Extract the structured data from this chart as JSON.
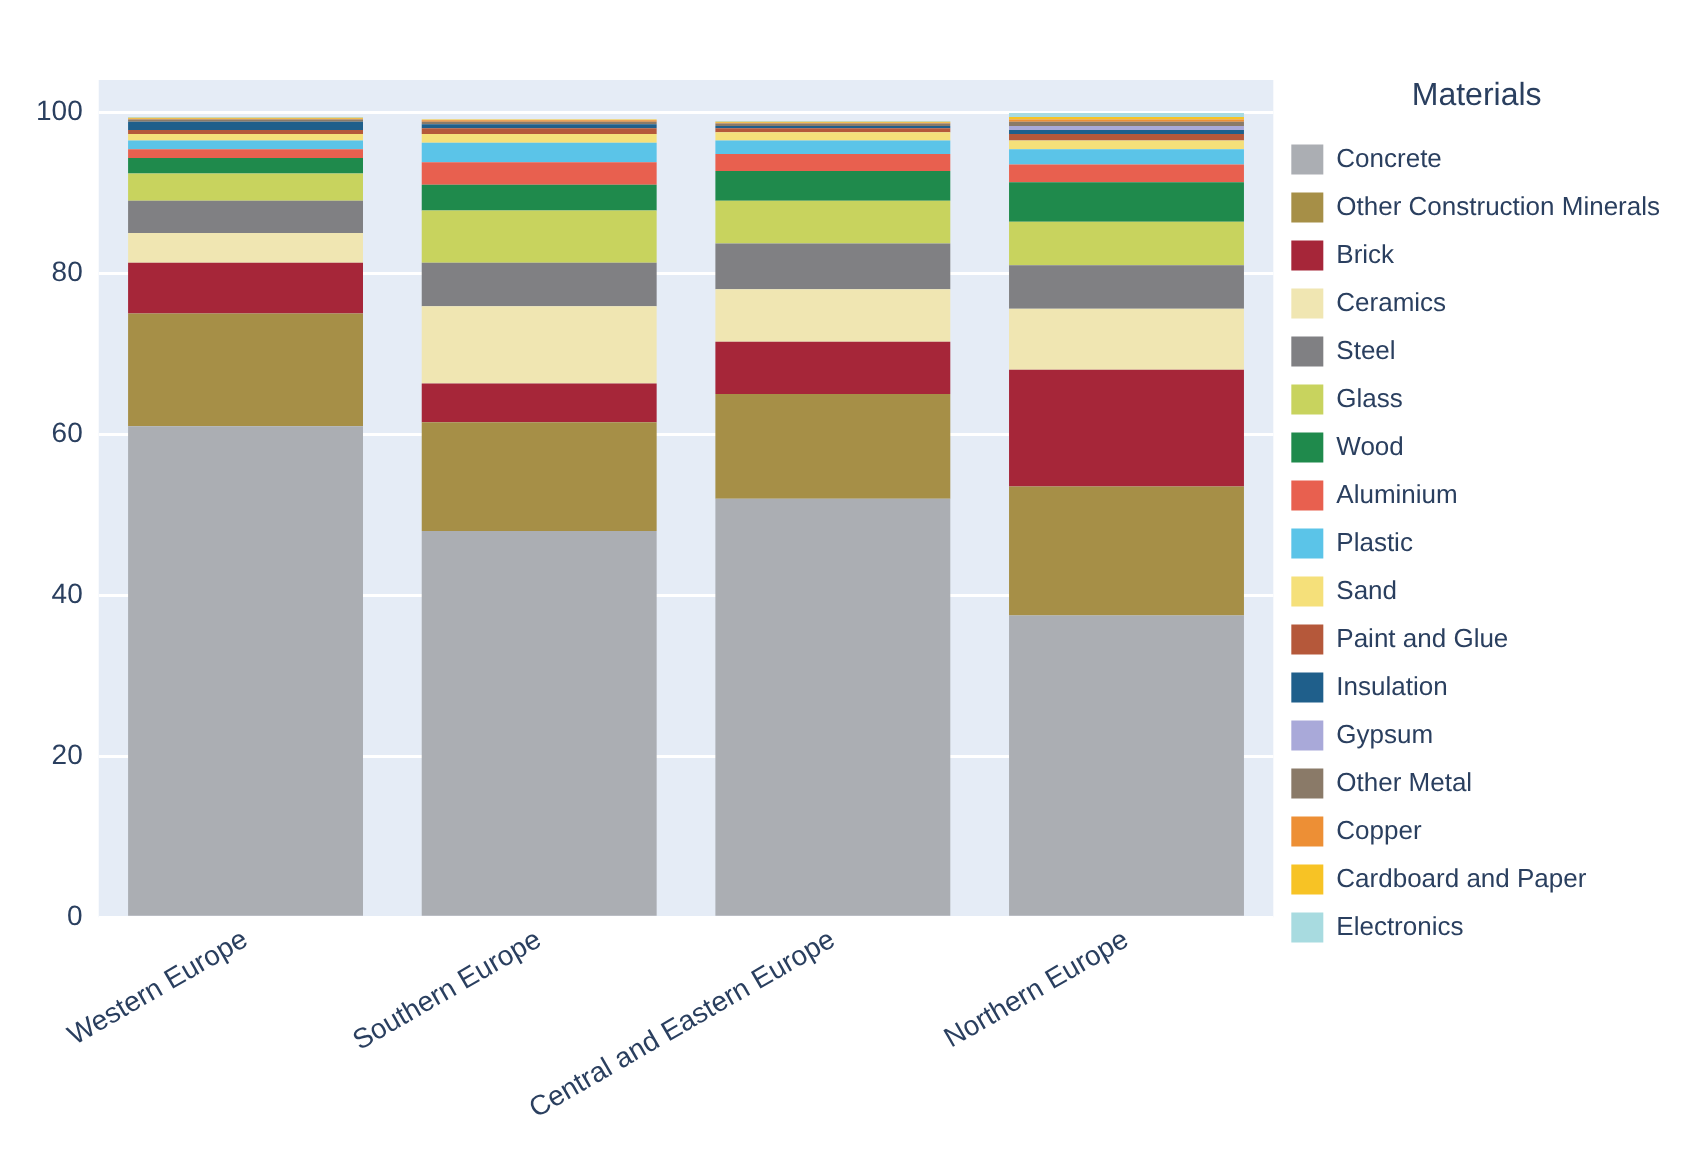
{
  "chart_data": {
    "type": "bar",
    "stacked": true,
    "legend_title": "Materials",
    "legend": "right",
    "grid": "y",
    "categories": [
      "Western Europe",
      "Southern Europe",
      "Central and Eastern Europe",
      "Northern Europe"
    ],
    "ylim": [
      0,
      104
    ],
    "yticks": [
      0,
      20,
      40,
      60,
      80,
      100
    ],
    "series": [
      {
        "name": "Concrete",
        "color": "#abaeb3",
        "values": [
          61,
          48,
          52,
          37.5
        ]
      },
      {
        "name": "Other Construction Minerals",
        "color": "#a68f47",
        "values": [
          14,
          13.5,
          13,
          16
        ]
      },
      {
        "name": "Brick",
        "color": "#a62639",
        "values": [
          6.3,
          4.8,
          6.5,
          14.5
        ]
      },
      {
        "name": "Ceramics",
        "color": "#f0e6b2",
        "values": [
          3.7,
          9.6,
          6.5,
          7.6
        ]
      },
      {
        "name": "Steel",
        "color": "#808083",
        "values": [
          4,
          5.4,
          5.7,
          5.4
        ]
      },
      {
        "name": "Glass",
        "color": "#c8d35e",
        "values": [
          3.4,
          6.5,
          5.3,
          5.4
        ]
      },
      {
        "name": "Wood",
        "color": "#1f8a4c",
        "values": [
          1.9,
          3.2,
          3.7,
          4.9
        ]
      },
      {
        "name": "Aluminium",
        "color": "#e8604f",
        "values": [
          1.1,
          2.8,
          2.1,
          2.2
        ]
      },
      {
        "name": "Plastic",
        "color": "#5bc4e8",
        "values": [
          1.1,
          2.4,
          1.7,
          1.9
        ]
      },
      {
        "name": "Sand",
        "color": "#f5e07a",
        "values": [
          0.8,
          1.1,
          1,
          1.1
        ]
      },
      {
        "name": "Paint and Glue",
        "color": "#b5583a",
        "values": [
          0.5,
          0.7,
          0.5,
          0.8
        ]
      },
      {
        "name": "Insulation",
        "color": "#1f5f8b",
        "values": [
          1,
          0.5,
          0.3,
          0.5
        ]
      },
      {
        "name": "Gypsum",
        "color": "#a9a9d9",
        "values": [
          null,
          null,
          null,
          0.5
        ]
      },
      {
        "name": "Other Metal",
        "color": "#8a7a68",
        "values": [
          0.3,
          0.3,
          0.3,
          0.5
        ]
      },
      {
        "name": "Copper",
        "color": "#ed8f35",
        "values": [
          0.1,
          0.2,
          0.1,
          0.3
        ]
      },
      {
        "name": "Cardboard and Paper",
        "color": "#f7c325",
        "values": [
          0.1,
          0.1,
          0.1,
          0.3
        ]
      },
      {
        "name": "Electronics",
        "color": "#a8dbe0",
        "values": [
          0.1,
          null,
          0.1,
          0.5
        ]
      }
    ]
  }
}
